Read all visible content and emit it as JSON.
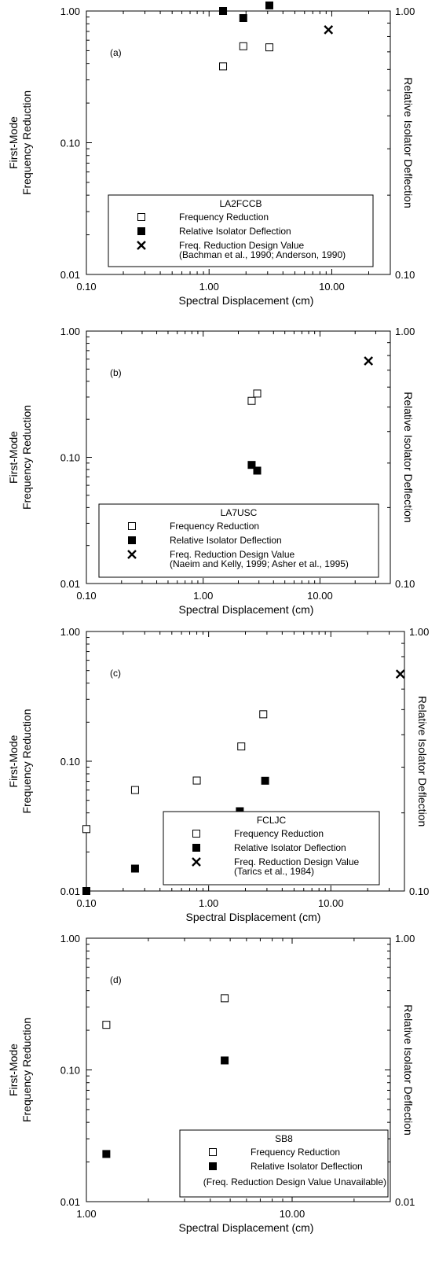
{
  "chart_data": [
    {
      "type": "scatter",
      "panel_label": "(a)",
      "x_scale": "log",
      "y_scale": "log",
      "y2_scale": "log",
      "xlim": [
        0.1,
        30
      ],
      "ylim": [
        0.01,
        1.0
      ],
      "y2lim": [
        0.1,
        1.0
      ],
      "x_ticks": [
        "0.10",
        "1.00",
        "10.00"
      ],
      "y_ticks": [
        "0.01",
        "0.10",
        "1.00"
      ],
      "y2_ticks": [
        "0.10",
        "1.00"
      ],
      "xlabel": "Spectral Displacement (cm)",
      "ylabel_line1": "First-Mode",
      "ylabel_line2": "Frequency Reduction",
      "y2label": "Relative Isolator Deflection",
      "legend": {
        "title": "LA2FCCB",
        "entries": [
          "Frequency Reduction",
          "Relative Isolator Deflection",
          "Freq. Reduction Design Value"
        ],
        "note": "(Bachman et al., 1990; Anderson, 1990)"
      },
      "series": [
        {
          "marker": "open-square",
          "axis": "y",
          "x": [
            1.3,
            1.9,
            3.1
          ],
          "y": [
            0.38,
            0.54,
            0.53
          ]
        },
        {
          "marker": "filled-square",
          "axis": "y2",
          "x": [
            1.3,
            1.9,
            3.1
          ],
          "y": [
            1.0,
            0.94,
            1.05
          ]
        },
        {
          "marker": "cross",
          "axis": "y",
          "x": [
            9.4
          ],
          "y": [
            0.72
          ]
        }
      ],
      "grid": false
    },
    {
      "type": "scatter",
      "panel_label": "(b)",
      "x_scale": "log",
      "y_scale": "log",
      "y2_scale": "log",
      "xlim": [
        0.1,
        40
      ],
      "ylim": [
        0.01,
        1.0
      ],
      "y2lim": [
        0.1,
        1.0
      ],
      "x_ticks": [
        "0.10",
        "1.00",
        "10.00"
      ],
      "y_ticks": [
        "0.01",
        "0.10",
        "1.00"
      ],
      "y2_ticks": [
        "0.10",
        "1.00"
      ],
      "xlabel": "Spectral Displacement (cm)",
      "ylabel_line1": "First-Mode",
      "ylabel_line2": "Frequency Reduction",
      "y2label": "Relative Isolator Deflection",
      "legend": {
        "title": "LA7USC",
        "entries": [
          "Frequency Reduction",
          "Relative Isolator Deflection",
          "Freq. Reduction Design Value"
        ],
        "note": "(Naeim and Kelly, 1999; Asher et al., 1995)"
      },
      "series": [
        {
          "marker": "open-square",
          "axis": "y",
          "x": [
            2.6,
            2.9
          ],
          "y": [
            0.28,
            0.32
          ]
        },
        {
          "marker": "filled-square",
          "axis": "y2",
          "x": [
            2.6,
            2.9
          ],
          "y": [
            0.295,
            0.28
          ]
        },
        {
          "marker": "cross",
          "axis": "y",
          "x": [
            26
          ],
          "y": [
            0.58
          ]
        }
      ],
      "grid": false
    },
    {
      "type": "scatter",
      "panel_label": "(c)",
      "x_scale": "log",
      "y_scale": "log",
      "y2_scale": "log",
      "xlim": [
        0.1,
        40
      ],
      "ylim": [
        0.01,
        1.0
      ],
      "y2lim": [
        0.1,
        1.0
      ],
      "x_ticks": [
        "0.10",
        "1.00",
        "10.00"
      ],
      "y_ticks": [
        "0.01",
        "0.10",
        "1.00"
      ],
      "y2_ticks": [
        "0.10",
        "1.00"
      ],
      "xlabel": "Spectral Displacement (cm)",
      "ylabel_line1": "First-Mode",
      "ylabel_line2": "Frequency Reduction",
      "y2label": "Relative Isolator Deflection",
      "legend": {
        "title": "FCLJC",
        "entries": [
          "Frequency Reduction",
          "Relative Isolator Deflection",
          "Freq. Reduction Design Value"
        ],
        "note": "(Tarics et al., 1984)"
      },
      "series": [
        {
          "marker": "open-square",
          "axis": "y",
          "x": [
            0.1,
            0.25,
            0.8,
            1.85,
            2.8
          ],
          "y": [
            0.03,
            0.06,
            0.071,
            0.13,
            0.23
          ]
        },
        {
          "marker": "filled-square",
          "axis": "y2",
          "x": [
            0.1,
            0.25,
            1.8,
            2.9
          ],
          "y": [
            0.1,
            0.122,
            0.203,
            0.266
          ]
        },
        {
          "marker": "cross",
          "axis": "y",
          "x": [
            37
          ],
          "y": [
            0.47
          ]
        }
      ],
      "grid": false
    },
    {
      "type": "scatter",
      "panel_label": "(d)",
      "x_scale": "log",
      "y_scale": "log",
      "y2_scale": "log",
      "xlim": [
        1.0,
        30
      ],
      "ylim": [
        0.01,
        1.0
      ],
      "y2lim": [
        0.01,
        1.0
      ],
      "x_ticks": [
        "1.00",
        "10.00"
      ],
      "y_ticks": [
        "0.01",
        "0.10",
        "1.00"
      ],
      "y2_ticks": [
        "0.01",
        "1.00"
      ],
      "xlabel": "Spectral Displacement (cm)",
      "ylabel_line1": "First-Mode",
      "ylabel_line2": "Frequency Reduction",
      "y2label": "Relative Isolator Deflection",
      "legend": {
        "title": "SB8",
        "entries": [
          "Frequency Reduction",
          "Relative Isolator Deflection"
        ],
        "note": "(Freq. Reduction Design Value Unavailable)"
      },
      "series": [
        {
          "marker": "open-square",
          "axis": "y",
          "x": [
            1.25,
            4.7
          ],
          "y": [
            0.22,
            0.35
          ]
        },
        {
          "marker": "filled-square",
          "axis": "y2",
          "x": [
            1.25,
            4.7
          ],
          "y": [
            0.023,
            0.118
          ]
        }
      ],
      "grid": false
    }
  ]
}
